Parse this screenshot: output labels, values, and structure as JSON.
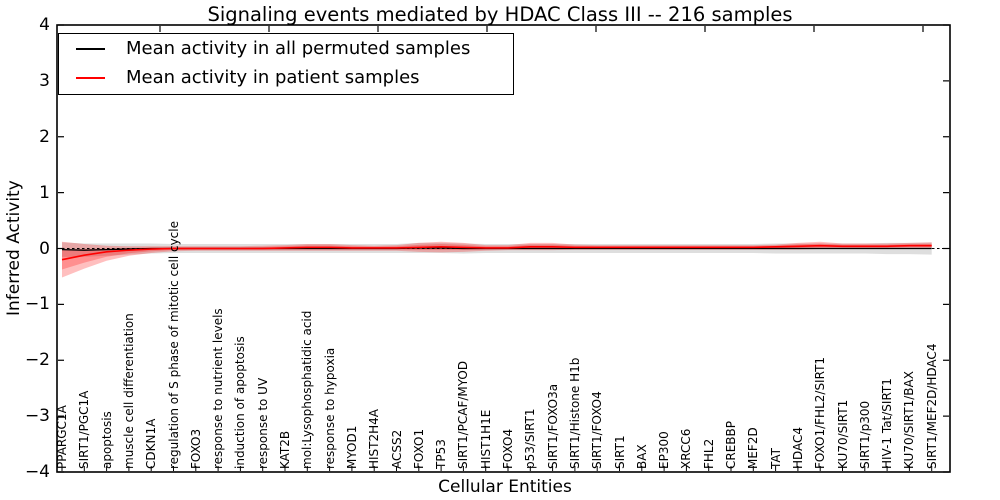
{
  "title": "Signaling events mediated by HDAC Class III -- 216 samples",
  "axes": {
    "ylabel": "Inferred Activity",
    "xlabel": "Cellular Entities"
  },
  "legend": {
    "items": [
      {
        "label": "Mean activity in all permuted samples",
        "color": "#000000"
      },
      {
        "label": "Mean activity in patient samples",
        "color": "#ff0000"
      }
    ]
  },
  "chart_data": {
    "type": "line",
    "title": "Signaling events mediated by HDAC Class III -- 216 samples",
    "xlabel": "Cellular Entities",
    "ylabel": "Inferred Activity",
    "ylim": [
      -4,
      4
    ],
    "yticks": [
      4,
      3,
      2,
      1,
      0,
      -1,
      -2,
      -3,
      -4
    ],
    "ytick_labels": [
      "4",
      "3",
      "2",
      "1",
      "0",
      "−1",
      "−2",
      "−3",
      "−4"
    ],
    "grid": false,
    "legend_position": "upper left",
    "zero_line": "dashed-black",
    "band_colors": {
      "permuted": "#c8c8c8",
      "patient": "#ff0000"
    },
    "categories": [
      "PPARGC1A",
      "SIRT1/PGC1A",
      "apoptosis",
      "muscle cell differentiation",
      "CDKN1A",
      "regulation of S phase of mitotic cell cycle",
      "FOXO3",
      "response to nutrient levels",
      "induction of apoptosis",
      "response to UV",
      "KAT2B",
      "mol:Lysophosphatidic acid",
      "response to hypoxia",
      "MYOD1",
      "HIST2H4A",
      "ACSS2",
      "FOXO1",
      "TP53",
      "SIRT1/PCAF/MYOD",
      "HIST1H1E",
      "FOXO4",
      "p53/SIRT1",
      "SIRT1/FOXO3a",
      "SIRT1/Histone H1b",
      "SIRT1/FOXO4",
      "SIRT1",
      "BAX",
      "EP300",
      "XRCC6",
      "FHL2",
      "CREBBP",
      "MEF2D",
      "TAT",
      "HDAC4",
      "FOXO1/FHL2/SIRT1",
      "KU70/SIRT1",
      "SIRT1/p300",
      "HIV-1 Tat/SIRT1",
      "KU70/SIRT1/BAX",
      "SIRT1/MEF2D/HDAC4"
    ],
    "series": [
      {
        "name": "Mean activity in all permuted samples",
        "color": "#000000",
        "values": [
          -0.02,
          -0.03,
          -0.02,
          -0.01,
          0,
          0,
          0,
          0,
          0,
          0,
          0,
          0,
          0,
          0,
          0,
          0,
          0.01,
          0.01,
          0,
          0,
          0,
          0,
          0,
          0,
          0,
          0,
          0,
          0,
          0,
          0,
          0,
          0,
          0,
          0,
          0,
          0,
          0,
          0,
          0,
          0
        ],
        "band_halfwidth": [
          0.13,
          0.12,
          0.11,
          0.1,
          0.09,
          0.08,
          0.08,
          0.08,
          0.08,
          0.08,
          0.08,
          0.08,
          0.08,
          0.08,
          0.08,
          0.08,
          0.09,
          0.09,
          0.09,
          0.08,
          0.08,
          0.08,
          0.08,
          0.08,
          0.08,
          0.08,
          0.08,
          0.08,
          0.08,
          0.08,
          0.08,
          0.08,
          0.09,
          0.09,
          0.09,
          0.09,
          0.09,
          0.1,
          0.1,
          0.11
        ]
      },
      {
        "name": "Mean activity in patient samples",
        "color": "#ff0000",
        "values": [
          -0.2,
          -0.12,
          -0.06,
          -0.03,
          -0.01,
          0,
          0,
          0,
          0,
          0,
          0.01,
          0.02,
          0.02,
          0.01,
          0.01,
          0.01,
          0.02,
          0.03,
          0.02,
          0.01,
          0.01,
          0.03,
          0.03,
          0.02,
          0.02,
          0.02,
          0.02,
          0.02,
          0.02,
          0.02,
          0.02,
          0.02,
          0.03,
          0.04,
          0.05,
          0.04,
          0.04,
          0.04,
          0.05,
          0.05
        ],
        "band": [
          [
            -0.52,
            0.12
          ],
          [
            -0.36,
            0.08
          ],
          [
            -0.22,
            0.05
          ],
          [
            -0.13,
            0.04
          ],
          [
            -0.08,
            0.04
          ],
          [
            -0.05,
            0.04
          ],
          [
            -0.04,
            0.04
          ],
          [
            -0.04,
            0.04
          ],
          [
            -0.04,
            0.04
          ],
          [
            -0.04,
            0.05
          ],
          [
            -0.04,
            0.06
          ],
          [
            -0.04,
            0.08
          ],
          [
            -0.04,
            0.08
          ],
          [
            -0.04,
            0.06
          ],
          [
            -0.04,
            0.05
          ],
          [
            -0.04,
            0.06
          ],
          [
            -0.06,
            0.1
          ],
          [
            -0.07,
            0.12
          ],
          [
            -0.06,
            0.1
          ],
          [
            -0.04,
            0.06
          ],
          [
            -0.03,
            0.06
          ],
          [
            -0.03,
            0.1
          ],
          [
            -0.03,
            0.1
          ],
          [
            -0.02,
            0.07
          ],
          [
            -0.02,
            0.06
          ],
          [
            -0.02,
            0.06
          ],
          [
            -0.02,
            0.06
          ],
          [
            -0.02,
            0.06
          ],
          [
            -0.02,
            0.06
          ],
          [
            -0.02,
            0.06
          ],
          [
            -0.02,
            0.06
          ],
          [
            -0.02,
            0.06
          ],
          [
            -0.02,
            0.07
          ],
          [
            -0.02,
            0.1
          ],
          [
            -0.01,
            0.12
          ],
          [
            0.0,
            0.09
          ],
          [
            0.0,
            0.09
          ],
          [
            0.0,
            0.09
          ],
          [
            0.01,
            0.1
          ],
          [
            0.01,
            0.11
          ]
        ]
      }
    ]
  }
}
